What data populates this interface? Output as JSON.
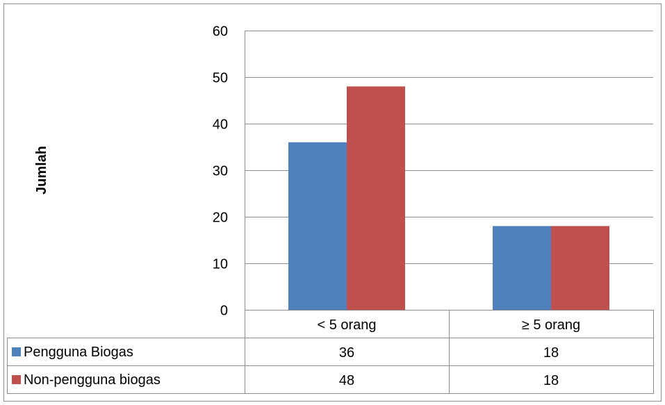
{
  "chart_data": {
    "type": "bar",
    "title": "",
    "xlabel": "",
    "ylabel": "Jumlah",
    "ylim": [
      0,
      60
    ],
    "yticks": [
      0,
      10,
      20,
      30,
      40,
      50,
      60
    ],
    "grid": true,
    "legend": "data-table",
    "categories": [
      "< 5 orang",
      "≥ 5 orang"
    ],
    "series": [
      {
        "name": "Pengguna Biogas",
        "color": "#4f81bd",
        "values": [
          36,
          18
        ]
      },
      {
        "name": "Non-pengguna biogas",
        "color": "#c0504d",
        "values": [
          48,
          18
        ]
      }
    ]
  }
}
